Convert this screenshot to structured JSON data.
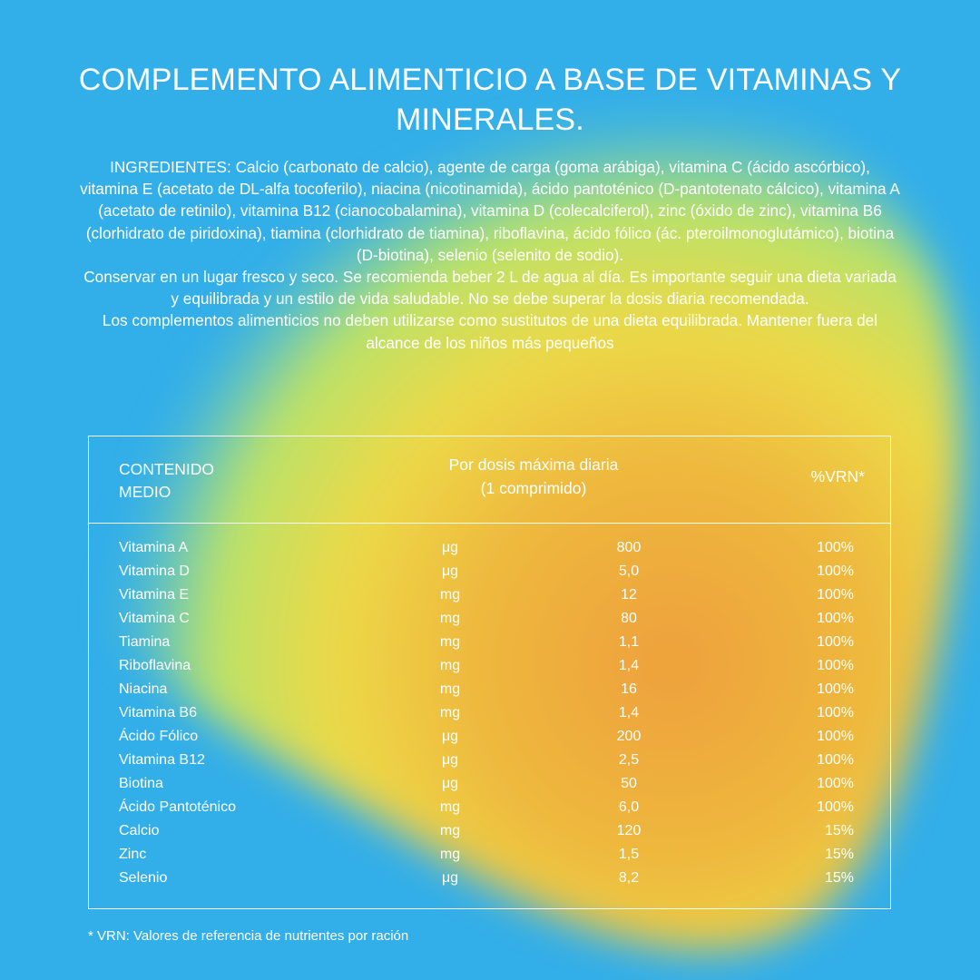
{
  "colors": {
    "background": "#32aee9",
    "blob_green": "#c8e85a",
    "blob_yellow": "#efd93f",
    "blob_orange": "#eda03b",
    "text": "#ffffff"
  },
  "title": "COMPLEMENTO ALIMENTICIO A BASE DE VITAMINAS Y MINERALES.",
  "paragraphs": [
    "INGREDIENTES: Calcio (carbonato de calcio), agente de carga (goma arábiga), vitamina C (ácido ascórbico), vitamina E (acetato de DL-alfa tocoferilo), niacina (nicotinamida), ácido pantoténico (D-pantotenato cálcico), vitamina A (acetato de retinilo), vitamina B12 (cianocobalamina), vitamina D (colecalciferol), zinc (óxido de zinc), vitamina B6 (clorhidrato de piridoxina), tiamina (clorhidrato de tiamina), riboflavina, ácido fólico (ác. pteroilmonoglutámico), biotina (D-biotina), selenio (selenito de sodio).",
    "Conservar en un lugar fresco y seco. Se recomienda beber 2 L de agua al día. Es importante seguir una dieta variada y equilibrada y un estilo de vida saludable. No se debe superar la dosis diaria recomendada.",
    "Los complementos alimenticios no deben utilizarse como sustitutos de una dieta equilibrada. Mantener fuera del alcance de los niños más pequeños"
  ],
  "table": {
    "headers": {
      "name_line1": "CONTENIDO",
      "name_line2": "MEDIO",
      "dose_line1": "Por dosis máxima diaria",
      "dose_line2": "(1 comprimido)",
      "vrn": "%VRN*"
    },
    "rows": [
      {
        "name": "Vitamina A",
        "unit": "μg",
        "value": "800",
        "vrn": "100%"
      },
      {
        "name": "Vitamina D",
        "unit": "μg",
        "value": "5,0",
        "vrn": "100%"
      },
      {
        "name": "Vitamina E",
        "unit": "mg",
        "value": "12",
        "vrn": "100%"
      },
      {
        "name": "Vitamina C",
        "unit": "mg",
        "value": "80",
        "vrn": "100%"
      },
      {
        "name": "Tiamina",
        "unit": "mg",
        "value": "1,1",
        "vrn": "100%"
      },
      {
        "name": "Riboflavina",
        "unit": "mg",
        "value": "1,4",
        "vrn": "100%"
      },
      {
        "name": "Niacina",
        "unit": "mg",
        "value": "16",
        "vrn": "100%"
      },
      {
        "name": "Vitamina B6",
        "unit": "mg",
        "value": "1,4",
        "vrn": "100%"
      },
      {
        "name": "Ácido Fólico",
        "unit": "μg",
        "value": "200",
        "vrn": "100%"
      },
      {
        "name": "Vitamina B12",
        "unit": "μg",
        "value": "2,5",
        "vrn": "100%"
      },
      {
        "name": "Biotina",
        "unit": "μg",
        "value": "50",
        "vrn": "100%"
      },
      {
        "name": "Ácido Pantoténico",
        "unit": "mg",
        "value": "6,0",
        "vrn": "100%"
      },
      {
        "name": "Calcio",
        "unit": "mg",
        "value": "120",
        "vrn": "15%"
      },
      {
        "name": "Zinc",
        "unit": "mg",
        "value": "1,5",
        "vrn": "15%"
      },
      {
        "name": "Selenio",
        "unit": "μg",
        "value": "8,2",
        "vrn": "15%"
      }
    ]
  },
  "footnote": "* VRN: Valores de referencia de nutrientes por ración"
}
